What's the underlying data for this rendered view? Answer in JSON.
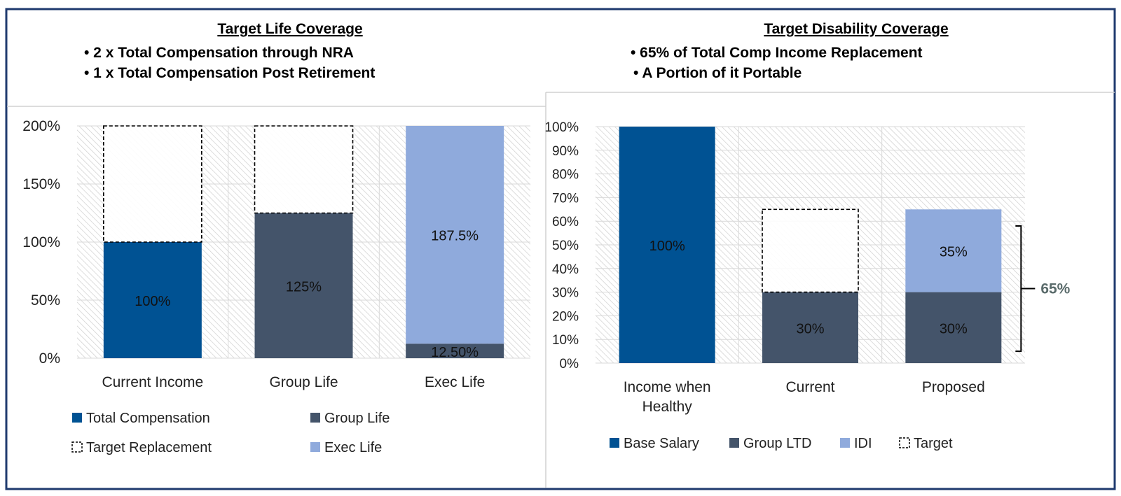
{
  "colors": {
    "border": "#1f3a6e",
    "total_compensation": "#005293",
    "group": "#44546a",
    "exec_light": "#8faadc",
    "grid": "#d9d9d9",
    "hatch": "#c8c8c8",
    "bracket_label": "#5a6b6b"
  },
  "left_header": {
    "title": "Target Life Coverage",
    "bullets": [
      "• 2 x Total Compensation through NRA",
      "• 1 x Total Compensation Post Retirement"
    ]
  },
  "right_header": {
    "title": "Target Disability Coverage",
    "bullets": [
      "• 65% of Total Comp Income Replacement",
      "• A Portion of it Portable"
    ]
  },
  "chart_data": [
    {
      "type": "bar",
      "stacked": true,
      "categories": [
        "Current Income",
        "Group Life",
        "Exec Life"
      ],
      "series": [
        {
          "name": "Total Compensation",
          "color_key": "total_compensation",
          "values": [
            1.0,
            0,
            0
          ],
          "labels": [
            "100%",
            "",
            ""
          ]
        },
        {
          "name": "Group Life",
          "color_key": "group",
          "values": [
            0,
            1.25,
            0.125
          ],
          "labels": [
            "",
            "125%",
            "12.50%"
          ]
        },
        {
          "name": "Exec Life",
          "color_key": "exec_light",
          "values": [
            0,
            0,
            1.875
          ],
          "labels": [
            "",
            "",
            "187.5%"
          ]
        }
      ],
      "target": {
        "name": "Target Replacement",
        "values": [
          2.0,
          2.0,
          2.0
        ]
      },
      "ylim": [
        0,
        2.0
      ],
      "yticks": [
        0,
        0.5,
        1.0,
        1.5,
        2.0
      ],
      "ytick_labels": [
        "0%",
        "50%",
        "100%",
        "150%",
        "200%"
      ],
      "grid": true,
      "legend_items": [
        {
          "name": "Total Compensation",
          "color_key": "total_compensation",
          "dashed": false
        },
        {
          "name": "Group Life",
          "color_key": "group",
          "dashed": false
        },
        {
          "name": "Target Replacement",
          "color_key": null,
          "dashed": true
        },
        {
          "name": "Exec Life",
          "color_key": "exec_light",
          "dashed": false
        }
      ],
      "legend_placement": "bottom"
    },
    {
      "type": "bar",
      "stacked": true,
      "categories": [
        "Income when Healthy",
        "Current",
        "Proposed"
      ],
      "series": [
        {
          "name": "Base Salary",
          "color_key": "total_compensation",
          "values": [
            1.0,
            0,
            0
          ],
          "labels": [
            "100%",
            "",
            ""
          ]
        },
        {
          "name": "Group LTD",
          "color_key": "group",
          "values": [
            0,
            0.3,
            0.3
          ],
          "labels": [
            "",
            "30%",
            "30%"
          ]
        },
        {
          "name": "IDI",
          "color_key": "exec_light",
          "values": [
            0,
            0,
            0.35
          ],
          "labels": [
            "",
            "",
            "35%"
          ]
        }
      ],
      "target": {
        "name": "Target",
        "values": [
          0,
          0.65,
          0
        ]
      },
      "ylim": [
        0,
        1.0
      ],
      "yticks": [
        0,
        0.1,
        0.2,
        0.3,
        0.4,
        0.5,
        0.6,
        0.7,
        0.8,
        0.9,
        1.0
      ],
      "ytick_labels": [
        "0%",
        "10%",
        "20%",
        "30%",
        "40%",
        "50%",
        "60%",
        "70%",
        "80%",
        "90%",
        "100%"
      ],
      "grid": true,
      "annotation": {
        "text": "65%",
        "category_index": 2,
        "from": 0.05,
        "to": 0.58
      },
      "legend_items": [
        {
          "name": "Base Salary",
          "color_key": "total_compensation",
          "dashed": false
        },
        {
          "name": "Group LTD",
          "color_key": "group",
          "dashed": false
        },
        {
          "name": "IDI",
          "color_key": "exec_light",
          "dashed": false
        },
        {
          "name": "Target",
          "color_key": null,
          "dashed": true
        }
      ],
      "legend_placement": "bottom"
    }
  ]
}
